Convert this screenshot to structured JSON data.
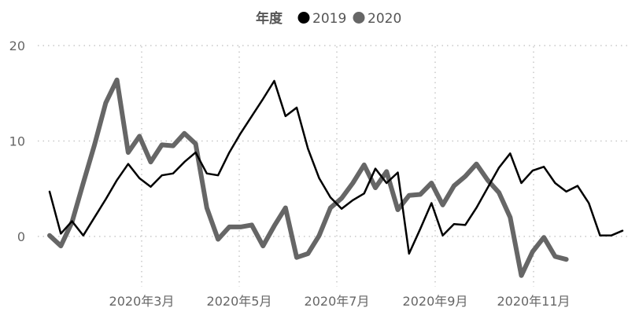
{
  "chart_data": {
    "type": "line",
    "legend": {
      "title": "年度",
      "position": "top-center"
    },
    "x_tick_labels": [
      "2020年3月",
      "2020年5月",
      "2020年7月",
      "2020年9月",
      "2020年11月"
    ],
    "y_ticks": [
      0,
      10,
      20
    ],
    "ylim": [
      -4.5,
      20
    ],
    "grid": {
      "horizontal": true,
      "vertical": true,
      "style": "dotted"
    },
    "series": [
      {
        "name": "2019",
        "color": "#000000",
        "values": [
          4.7,
          0.3,
          1.6,
          0.1,
          2.0,
          3.9,
          5.9,
          7.6,
          6.1,
          5.2,
          6.4,
          6.6,
          7.8,
          8.8,
          6.6,
          6.4,
          8.8,
          10.8,
          12.6,
          14.4,
          16.3,
          12.6,
          13.5,
          9.2,
          6.1,
          4.1,
          2.9,
          3.8,
          4.5,
          7.1,
          5.6,
          6.7,
          -1.8,
          0.8,
          3.5,
          0.1,
          1.3,
          1.2,
          3.0,
          5.1,
          7.2,
          8.7,
          5.6,
          6.9,
          7.3,
          5.6,
          4.7,
          5.3,
          3.5,
          0.1,
          0.1,
          0.6
        ]
      },
      {
        "name": "2020",
        "color": "#666666",
        "values": [
          0.1,
          -1.0,
          1.5,
          5.6,
          9.6,
          14.0,
          16.4,
          8.8,
          10.5,
          7.8,
          9.6,
          9.5,
          10.8,
          9.7,
          3.0,
          -0.3,
          1.0,
          1.0,
          1.2,
          -1.0,
          1.1,
          3.0,
          -2.2,
          -1.8,
          0.1,
          3.0,
          4.0,
          5.6,
          7.5,
          5.1,
          6.8,
          2.8,
          4.3,
          4.4,
          5.6,
          3.3,
          5.3,
          6.3,
          7.6,
          5.9,
          4.6,
          2.0,
          -4.1,
          -1.6,
          -0.1,
          -2.1,
          -2.4
        ]
      }
    ]
  }
}
